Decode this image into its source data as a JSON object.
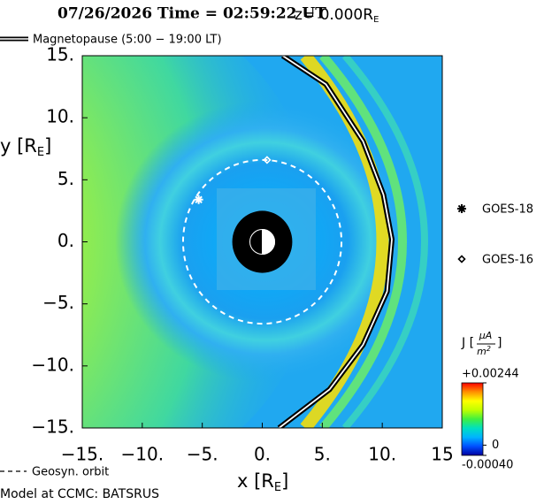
{
  "chart_data": {
    "type": "heatmap",
    "title": "07/26/2026 Time = 02:59:22 UT",
    "title_z": "z= 0.000R",
    "title_z_sub": "E",
    "xlabel": "x [R",
    "xlabel_sub": "E",
    "xlabel_end": "]",
    "ylabel": "y [R",
    "ylabel_sub": "E",
    "ylabel_end": "]",
    "xlim": [
      -15,
      15
    ],
    "ylim": [
      -15,
      15
    ],
    "xticks": [
      {
        "value": -15,
        "label": "−15."
      },
      {
        "value": -10,
        "label": "−10."
      },
      {
        "value": -5,
        "label": "−5."
      },
      {
        "value": 0,
        "label": "0."
      },
      {
        "value": 5,
        "label": "5."
      },
      {
        "value": 10,
        "label": "10."
      },
      {
        "value": 15,
        "label": "15"
      }
    ],
    "yticks": [
      {
        "value": 15,
        "label": "15."
      },
      {
        "value": 10,
        "label": "10."
      },
      {
        "value": 5,
        "label": "5."
      },
      {
        "value": 0,
        "label": "0."
      },
      {
        "value": -5,
        "label": "−5."
      },
      {
        "value": -10,
        "label": "−10."
      },
      {
        "value": -15,
        "label": "−15."
      }
    ],
    "magnetopause": {
      "name": "Magnetopause (5:00 − 19:00 LT)",
      "x": [
        1.7,
        5.3,
        8.4,
        10.1,
        10.8,
        10.4,
        8.4,
        5.6,
        1.4
      ],
      "y": [
        15,
        12.7,
        8.1,
        3.8,
        0.2,
        -4.0,
        -8.3,
        -11.9,
        -15
      ]
    },
    "geosyn_orbit": {
      "name": "Geosyn. orbit",
      "radius": 6.6,
      "color": "#ffffff"
    },
    "inner_boundary_radius": 2.5,
    "satellites": [
      {
        "name": "GOES-18",
        "marker": "star",
        "x": -5.3,
        "y": 3.4
      },
      {
        "name": "GOES-16",
        "marker": "diamond",
        "x": 0.4,
        "y": 6.6
      }
    ],
    "colorbar": {
      "label_prefix": "J [",
      "label_num": "μA",
      "label_den": "m",
      "label_den_sup": "2",
      "label_suffix": "]",
      "clim": [
        -0.0004,
        0.00244
      ],
      "colors": [
        "#0000a0",
        "#0050ff",
        "#00b4ff",
        "#00e0c0",
        "#40f040",
        "#c0ff00",
        "#ffff00",
        "#ff9000",
        "#ff0000"
      ],
      "ticks": [
        {
          "value": 0.00244,
          "label": "+0.00244"
        },
        {
          "value": 0,
          "label": "0"
        },
        {
          "value": -0.0004,
          "label": "-0.00040"
        }
      ]
    },
    "footer": "Model at CCMC: BATSRUS"
  }
}
